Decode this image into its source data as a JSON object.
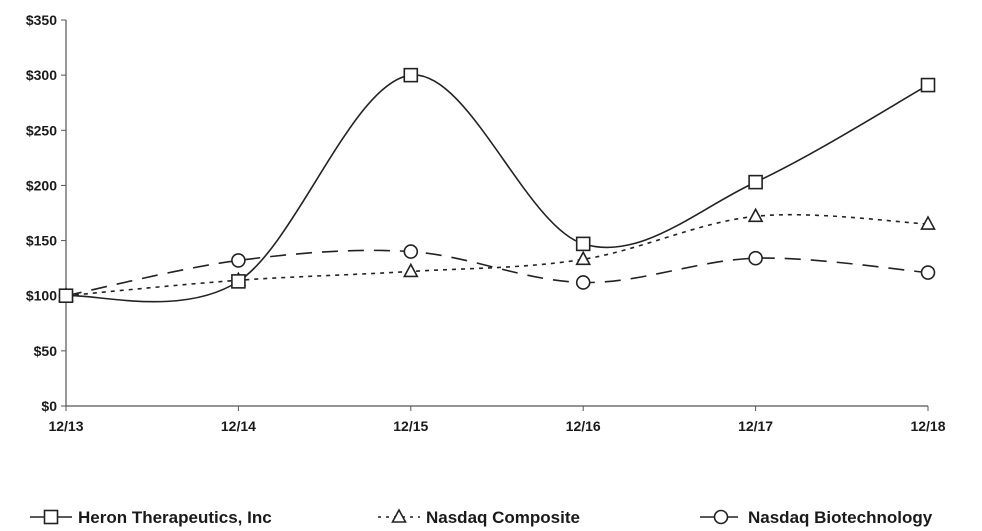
{
  "chart_data": {
    "type": "line",
    "title": "",
    "xlabel": "",
    "ylabel": "",
    "categories": [
      "12/13",
      "12/14",
      "12/15",
      "12/16",
      "12/17",
      "12/18"
    ],
    "ylim": [
      0,
      350
    ],
    "yticks": [
      0,
      50,
      100,
      150,
      200,
      250,
      300,
      350
    ],
    "ytick_labels": [
      "$0",
      "$50",
      "$100",
      "$150",
      "$200",
      "$250",
      "$300",
      "$350"
    ],
    "grid": false,
    "legend_position": "bottom",
    "series": [
      {
        "name": "Heron Therapeutics, Inc",
        "values": [
          100,
          113,
          300,
          147,
          203,
          291
        ],
        "marker": "square",
        "line": "solid",
        "color": "#222222"
      },
      {
        "name": "Nasdaq Composite",
        "values": [
          100,
          114,
          122,
          133,
          172,
          165
        ],
        "marker": "triangle",
        "line": "dotted",
        "color": "#222222"
      },
      {
        "name": "Nasdaq Biotechnology",
        "values": [
          100,
          132,
          140,
          112,
          134,
          121
        ],
        "marker": "circle",
        "line": "dashed",
        "color": "#222222"
      }
    ]
  }
}
